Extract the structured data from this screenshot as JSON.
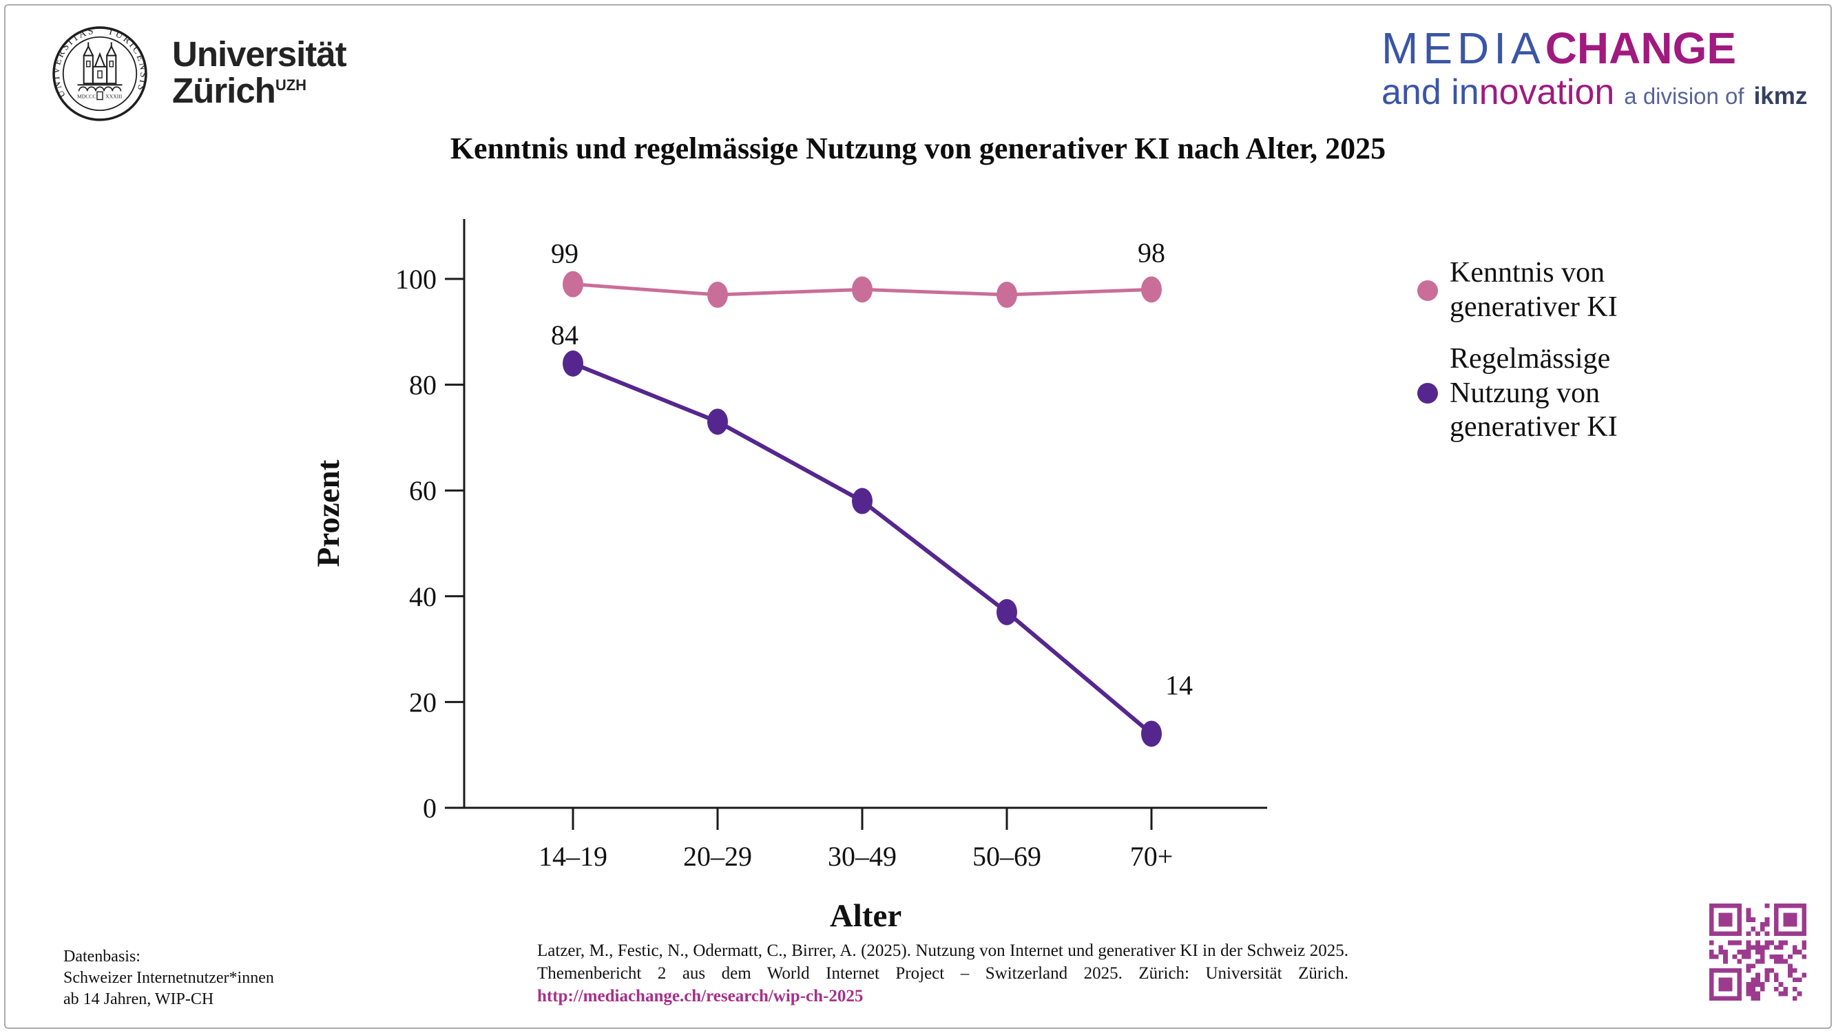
{
  "header": {
    "uzh": {
      "seal_text_left": "UNIVERSITAS",
      "seal_text_right": "TURICENSIS",
      "seal_bottom_left": "MDCCC",
      "seal_bottom_right": "XXXIII",
      "name_line1": "Universität",
      "name_line2": "Zürich",
      "name_sup": "UZH"
    },
    "mediachange": {
      "media": "MEDIA",
      "change": "CHANGE",
      "and_in": "and in",
      "novation": "novation",
      "division": "a division of",
      "ikmz": "ikmz",
      "blue": "#3b55a6",
      "magenta": "#a01a80",
      "slate": "#56639b",
      "navy": "#333f63"
    }
  },
  "title": "Kenntnis und regelmässige Nutzung von generativer KI nach Alter, 2025",
  "chart_data": {
    "type": "line",
    "categories": [
      "14–19",
      "20–29",
      "30–49",
      "50–69",
      "70+"
    ],
    "series": [
      {
        "name": "Kenntnis von generativer KI",
        "values": [
          99,
          97,
          98,
          97,
          98
        ],
        "color": "#c96e98"
      },
      {
        "name": "Regelmässige Nutzung von generativer KI",
        "values": [
          84,
          73,
          58,
          37,
          14
        ],
        "color": "#55278e"
      }
    ],
    "point_labels": [
      {
        "series": 0,
        "index": 0,
        "text": "99"
      },
      {
        "series": 0,
        "index": 4,
        "text": "98"
      },
      {
        "series": 1,
        "index": 0,
        "text": "84"
      },
      {
        "series": 1,
        "index": 4,
        "text": "14"
      }
    ],
    "xlabel": "Alter",
    "ylabel": "Prozent",
    "ylim": [
      0,
      100
    ],
    "yticks": [
      0,
      20,
      40,
      60,
      80,
      100
    ],
    "grid": false,
    "legend_position": "right"
  },
  "legend": {
    "items": [
      {
        "color": "#c96e98",
        "lines": [
          "Kenntnis von",
          "generativer KI"
        ]
      },
      {
        "color": "#55278e",
        "lines": [
          "Regelmässige",
          "Nutzung von",
          "generativer KI"
        ]
      }
    ]
  },
  "footer": {
    "datenbasis_lines": [
      "Datenbasis:",
      "Schweizer Internetnutzer*innen",
      "ab 14 Jahren, WIP-CH"
    ],
    "citation_line1": "Latzer, M., Festic, N., Odermatt, C., Birrer, A. (2025). Nutzung von Internet und generativer KI in der Schweiz 2025.",
    "citation_line2": "Themenbericht 2 aus dem World Internet Project – Switzerland 2025. Zürich: Universität Zürich.",
    "citation_url": "http://mediachange.ch/research/wip-ch-2025",
    "url_color": "#a5308c"
  },
  "qr": {
    "color": "#9c3b8e"
  }
}
